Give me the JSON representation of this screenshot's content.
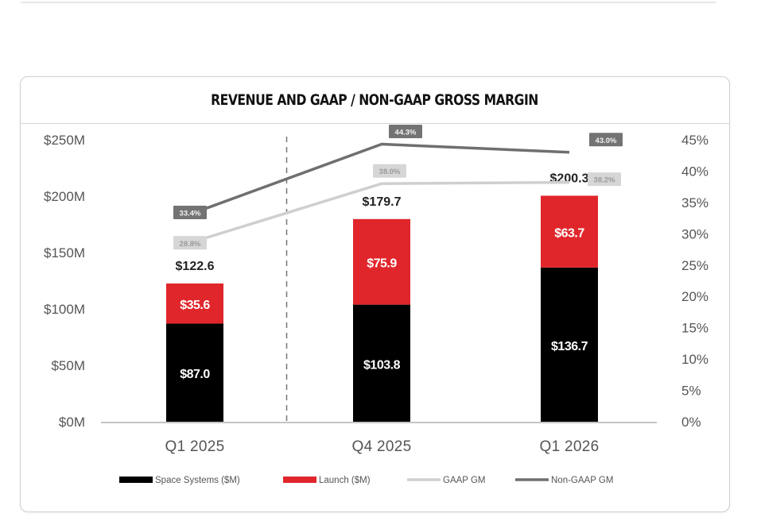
{
  "chart_data": {
    "type": "bar",
    "title": "REVENUE AND GAAP / NON-GAAP GROSS MARGIN",
    "stacked": true,
    "categories": [
      "Q1 2025",
      "Q4 2025",
      "Q1 2026"
    ],
    "series": [
      {
        "name": "Space Systems ($M)",
        "kind": "bar",
        "axis": "left",
        "color": "#000000",
        "values": [
          87.0,
          103.8,
          136.7
        ],
        "labels": [
          "$87.0",
          "$103.8",
          "$136.7"
        ]
      },
      {
        "name": "Launch ($M)",
        "kind": "bar",
        "axis": "left",
        "color": "#e0262b",
        "values": [
          35.6,
          75.9,
          63.7
        ],
        "labels": [
          "$35.6",
          "$75.9",
          "$63.7"
        ]
      },
      {
        "name": "GAAP GM",
        "kind": "line",
        "axis": "right",
        "color": "#cfcfcf",
        "values": [
          28.8,
          38.0,
          38.2
        ],
        "labels": [
          "28.8%",
          "38.0%",
          "38.2%"
        ]
      },
      {
        "name": "Non-GAAP GM",
        "kind": "line",
        "axis": "right",
        "color": "#6f6f6f",
        "values": [
          33.4,
          44.3,
          43.0
        ],
        "labels": [
          "33.4%",
          "44.3%",
          "43.0%"
        ]
      }
    ],
    "totals": [
      122.6,
      179.7,
      200.3
    ],
    "total_labels": [
      "$122.6",
      "$179.7",
      "$200.3"
    ],
    "ylim": [
      0,
      250
    ],
    "ytick_values": [
      0,
      50,
      100,
      150,
      200,
      250
    ],
    "ytick_labels": [
      "$0M",
      "$50M",
      "$100M",
      "$150M",
      "$200M",
      "$250M"
    ],
    "y2lim": [
      0,
      45
    ],
    "y2tick_values": [
      0,
      5,
      10,
      15,
      20,
      25,
      30,
      35,
      40,
      45
    ],
    "y2tick_labels": [
      "0%",
      "5%",
      "10%",
      "15%",
      "20%",
      "25%",
      "30%",
      "35%",
      "40%",
      "45%"
    ],
    "divider_after_category": 0,
    "legend_position": "bottom",
    "grid": false
  }
}
